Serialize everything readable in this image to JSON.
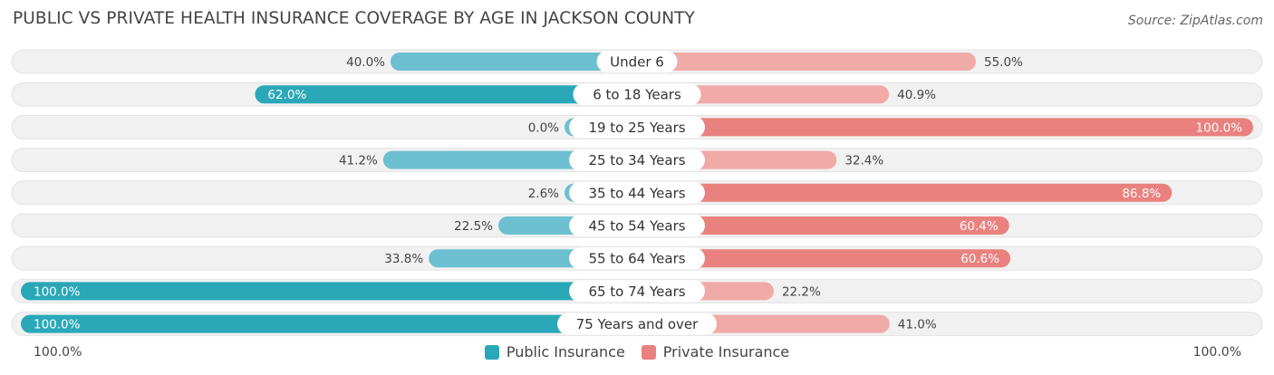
{
  "title": "PUBLIC VS PRIVATE HEALTH INSURANCE COVERAGE BY AGE IN JACKSON COUNTY",
  "source": "Source: ZipAtlas.com",
  "colors": {
    "public_dark": "#2aa8b8",
    "public_light": "#6cc0cf",
    "private_dark": "#e9817e",
    "private_light": "#f0aaa8",
    "track": "#f1f1f1"
  },
  "axis": {
    "left_label": "100.0%",
    "right_label": "100.0%"
  },
  "chart_data": {
    "type": "bar",
    "title": "PUBLIC VS PRIVATE HEALTH INSURANCE COVERAGE BY AGE IN JACKSON COUNTY",
    "orientation": "diverging-horizontal",
    "categories": [
      "Under 6",
      "6 to 18 Years",
      "19 to 25 Years",
      "25 to 34 Years",
      "35 to 44 Years",
      "45 to 54 Years",
      "55 to 64 Years",
      "65 to 74 Years",
      "75 Years and over"
    ],
    "series": [
      {
        "name": "Public Insurance",
        "side": "left",
        "values": [
          40.0,
          62.0,
          0.0,
          41.2,
          2.6,
          22.5,
          33.8,
          100.0,
          100.0
        ],
        "labels": [
          "40.0%",
          "62.0%",
          "0.0%",
          "41.2%",
          "2.6%",
          "22.5%",
          "33.8%",
          "100.0%",
          "100.0%"
        ]
      },
      {
        "name": "Private Insurance",
        "side": "right",
        "values": [
          55.0,
          40.9,
          100.0,
          32.4,
          86.8,
          60.4,
          60.6,
          22.2,
          41.0
        ],
        "labels": [
          "55.0%",
          "40.9%",
          "100.0%",
          "32.4%",
          "86.8%",
          "60.4%",
          "60.6%",
          "22.2%",
          "41.0%"
        ]
      }
    ],
    "xlim": [
      0,
      100
    ],
    "legend": "bottom-center"
  }
}
